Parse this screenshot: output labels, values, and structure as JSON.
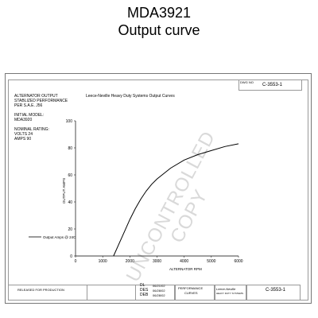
{
  "page": {
    "title": "MDA3921",
    "subtitle": "Output curve"
  },
  "drawing": {
    "top_ref": "C-3553-1",
    "top_small_label": "DWG NO",
    "spec_lines": [
      "ALTERNATOR OUTPUT",
      "STABLIZED PERFORMANCE",
      "PER S.A.E. J56",
      "",
      "INITIAL MODEL:",
      "MDA3920",
      "",
      "NOMINAL RATING:",
      "VOLTS 24",
      "AMPS 90"
    ],
    "watermark": [
      "UNCONTROLLED",
      "COPY"
    ],
    "title_block": {
      "released": "RELEASED FOR PRODUCTION",
      "dl_label": "DL",
      "des_label": "DES",
      "deb_label": "DEB",
      "dl_date": "06/21/02",
      "des_date": "06/28/02",
      "deb_date": "06/28/02",
      "company": "Leece-Neville",
      "company_sub": "HEAVY DUTY SYSTEMS",
      "performance": "PERFORMANCE",
      "curves": "CURVES",
      "dwg_no": "C-3553-1"
    }
  },
  "chart_data": {
    "type": "line",
    "title": "Leece-Neville Heavy Duty Systems Output Curves",
    "xlabel": "ALTERNATOR RPM",
    "ylabel": "OUTPUT  AMPS",
    "xlim": [
      0,
      6000
    ],
    "ylim": [
      0,
      100
    ],
    "xticks": [
      0,
      1000,
      2000,
      3000,
      4000,
      5000,
      6000
    ],
    "yticks": [
      0,
      20,
      40,
      60,
      80,
      100
    ],
    "legend": {
      "label": "Output Amps @ 24C",
      "placement": "left"
    },
    "grid": false,
    "series": [
      {
        "name": "Output Amps @ 24C",
        "color": "#000000",
        "x": [
          1400,
          1600,
          1800,
          2000,
          2200,
          2400,
          2600,
          2800,
          3000,
          3500,
          4000,
          4500,
          5000,
          5500,
          6000
        ],
        "y": [
          0,
          9,
          18,
          27,
          35,
          42,
          48,
          53,
          57,
          65,
          71,
          75,
          78,
          81,
          83
        ]
      }
    ]
  }
}
